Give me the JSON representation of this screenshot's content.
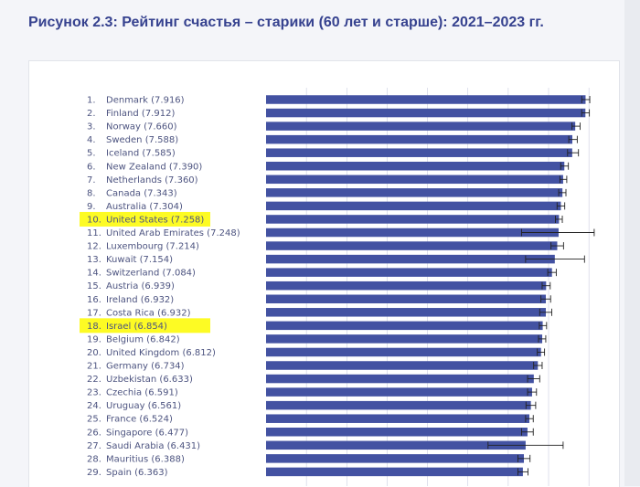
{
  "title": "Рисунок 2.3: Рейтинг счастья – старики (60 лет и старше): 2021–2023 гг.",
  "colors": {
    "bar": "#4352a2",
    "highlight": "#fdfb24",
    "errorbar": "#222222",
    "gridline": "#c9cde0",
    "title": "#36428f"
  },
  "chart_data": {
    "type": "bar",
    "orientation": "horizontal",
    "highlighted_ranks": [
      10,
      18
    ],
    "xlim": [
      0,
      8.2
    ],
    "grid": true,
    "items": [
      {
        "rank": "1.",
        "label": "Denmark (7.916)",
        "value": 7.916,
        "ci": [
          7.82,
          8.02
        ]
      },
      {
        "rank": "2.",
        "label": "Finland (7.912)",
        "value": 7.912,
        "ci": [
          7.82,
          8.01
        ]
      },
      {
        "rank": "3.",
        "label": "Norway (7.660)",
        "value": 7.66,
        "ci": [
          7.58,
          7.78
        ]
      },
      {
        "rank": "4.",
        "label": "Sweden (7.588)",
        "value": 7.588,
        "ci": [
          7.5,
          7.71
        ]
      },
      {
        "rank": "5.",
        "label": "Iceland (7.585)",
        "value": 7.585,
        "ci": [
          7.47,
          7.74
        ]
      },
      {
        "rank": "6.",
        "label": "New Zealand (7.390)",
        "value": 7.39,
        "ci": [
          7.3,
          7.49
        ]
      },
      {
        "rank": "7.",
        "label": "Netherlands (7.360)",
        "value": 7.36,
        "ci": [
          7.28,
          7.45
        ]
      },
      {
        "rank": "8.",
        "label": "Canada (7.343)",
        "value": 7.343,
        "ci": [
          7.25,
          7.43
        ]
      },
      {
        "rank": "9.",
        "label": "Australia (7.304)",
        "value": 7.304,
        "ci": [
          7.21,
          7.4
        ]
      },
      {
        "rank": "10.",
        "label": "United States (7.258)",
        "value": 7.258,
        "ci": [
          7.17,
          7.34
        ]
      },
      {
        "rank": "11.",
        "label": "United Arab Emirates (7.248)",
        "value": 7.248,
        "ci": [
          6.33,
          8.13
        ]
      },
      {
        "rank": "12.",
        "label": "Luxembourg (7.214)",
        "value": 7.214,
        "ci": [
          7.06,
          7.37
        ]
      },
      {
        "rank": "13.",
        "label": "Kuwait (7.154)",
        "value": 7.154,
        "ci": [
          6.43,
          7.89
        ]
      },
      {
        "rank": "14.",
        "label": "Switzerland (7.084)",
        "value": 7.084,
        "ci": [
          6.98,
          7.19
        ]
      },
      {
        "rank": "15.",
        "label": "Austria (6.939)",
        "value": 6.939,
        "ci": [
          6.84,
          7.04
        ]
      },
      {
        "rank": "16.",
        "label": "Ireland (6.932)",
        "value": 6.932,
        "ci": [
          6.81,
          7.05
        ]
      },
      {
        "rank": "17.",
        "label": "Costa Rica (6.932)",
        "value": 6.932,
        "ci": [
          6.78,
          7.08
        ]
      },
      {
        "rank": "18.",
        "label": "Israel (6.854)",
        "value": 6.854,
        "ci": [
          6.77,
          6.95
        ]
      },
      {
        "rank": "19.",
        "label": "Belgium (6.842)",
        "value": 6.842,
        "ci": [
          6.75,
          6.93
        ]
      },
      {
        "rank": "20.",
        "label": "United Kingdom (6.812)",
        "value": 6.812,
        "ci": [
          6.72,
          6.9
        ]
      },
      {
        "rank": "21.",
        "label": "Germany (6.734)",
        "value": 6.734,
        "ci": [
          6.63,
          6.84
        ]
      },
      {
        "rank": "22.",
        "label": "Uzbekistan (6.633)",
        "value": 6.633,
        "ci": [
          6.48,
          6.78
        ]
      },
      {
        "rank": "23.",
        "label": "Czechia (6.591)",
        "value": 6.591,
        "ci": [
          6.48,
          6.7
        ]
      },
      {
        "rank": "24.",
        "label": "Uruguay (6.561)",
        "value": 6.561,
        "ci": [
          6.44,
          6.68
        ]
      },
      {
        "rank": "25.",
        "label": "France (6.524)",
        "value": 6.524,
        "ci": [
          6.43,
          6.62
        ]
      },
      {
        "rank": "26.",
        "label": "Singapore (6.477)",
        "value": 6.477,
        "ci": [
          6.33,
          6.62
        ]
      },
      {
        "rank": "27.",
        "label": "Saudi Arabia (6.431)",
        "value": 6.431,
        "ci": [
          5.5,
          7.36
        ]
      },
      {
        "rank": "28.",
        "label": "Mauritius (6.388)",
        "value": 6.388,
        "ci": [
          6.24,
          6.54
        ]
      },
      {
        "rank": "29.",
        "label": "Spain (6.363)",
        "value": 6.363,
        "ci": [
          6.24,
          6.49
        ]
      }
    ]
  }
}
